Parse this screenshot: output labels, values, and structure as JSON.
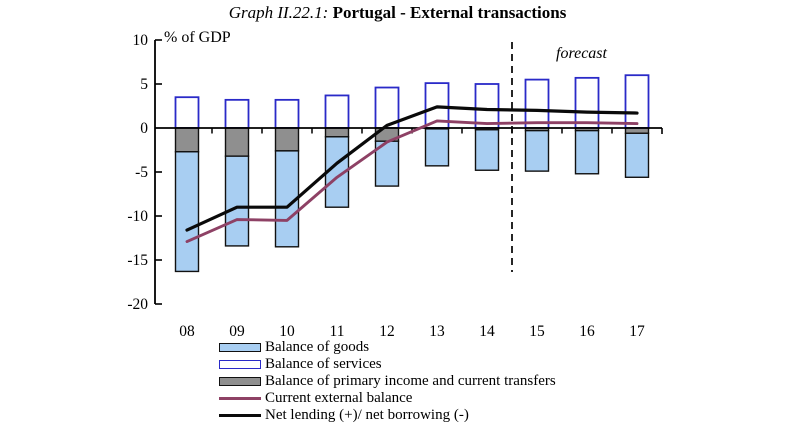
{
  "title": {
    "prefix": "Graph II.22.1:",
    "main": "Portugal - External transactions"
  },
  "chart_data": {
    "type": "bar",
    "subtype": "stacked-bars-with-overlaid-lines",
    "title": "Portugal - External transactions",
    "unit_label": "% of GDP",
    "forecast_label": "forecast",
    "forecast_divider_between": [
      "14",
      "15"
    ],
    "categories": [
      "08",
      "09",
      "10",
      "11",
      "12",
      "13",
      "14",
      "15",
      "16",
      "17"
    ],
    "ylim": [
      -20,
      10
    ],
    "ytick_step": 5,
    "yticks": [
      10,
      5,
      0,
      -5,
      -10,
      -15,
      -20
    ],
    "grid": "off",
    "legend_position": "bottom-left",
    "series": [
      {
        "name": "Balance of goods",
        "type": "bar",
        "stack": "negative",
        "color": "#A8CEF2",
        "border": "#111111",
        "values": [
          -13.6,
          -10.2,
          -10.9,
          -8.0,
          -5.1,
          -4.2,
          -4.6,
          -4.6,
          -4.9,
          -5.0
        ]
      },
      {
        "name": "Balance of services",
        "type": "bar",
        "stack": "positive",
        "color": "#FFFFFF",
        "border": "#2A2AC8",
        "values": [
          3.5,
          3.2,
          3.2,
          3.7,
          4.6,
          5.1,
          5.0,
          5.5,
          5.7,
          6.0
        ]
      },
      {
        "name": "Balance of primary income and current transfers",
        "type": "bar",
        "stack": "negative",
        "color": "#8F8F8F",
        "border": "#111111",
        "values": [
          -2.7,
          -3.2,
          -2.6,
          -1.0,
          -1.5,
          -0.1,
          -0.2,
          -0.3,
          -0.3,
          -0.6
        ]
      },
      {
        "name": "Current external balance",
        "type": "line",
        "color": "#8E4165",
        "values": [
          -12.9,
          -10.4,
          -10.5,
          -5.6,
          -1.6,
          0.8,
          0.5,
          0.6,
          0.6,
          0.5
        ]
      },
      {
        "name": "Net lending (+)/ net borrowing (-)",
        "type": "line",
        "color": "#0A0A0A",
        "values": [
          -11.6,
          -9.0,
          -9.0,
          -4.0,
          0.3,
          2.4,
          2.1,
          2.0,
          1.8,
          1.7
        ]
      }
    ],
    "negative_stack_render_order": [
      2,
      0
    ]
  }
}
